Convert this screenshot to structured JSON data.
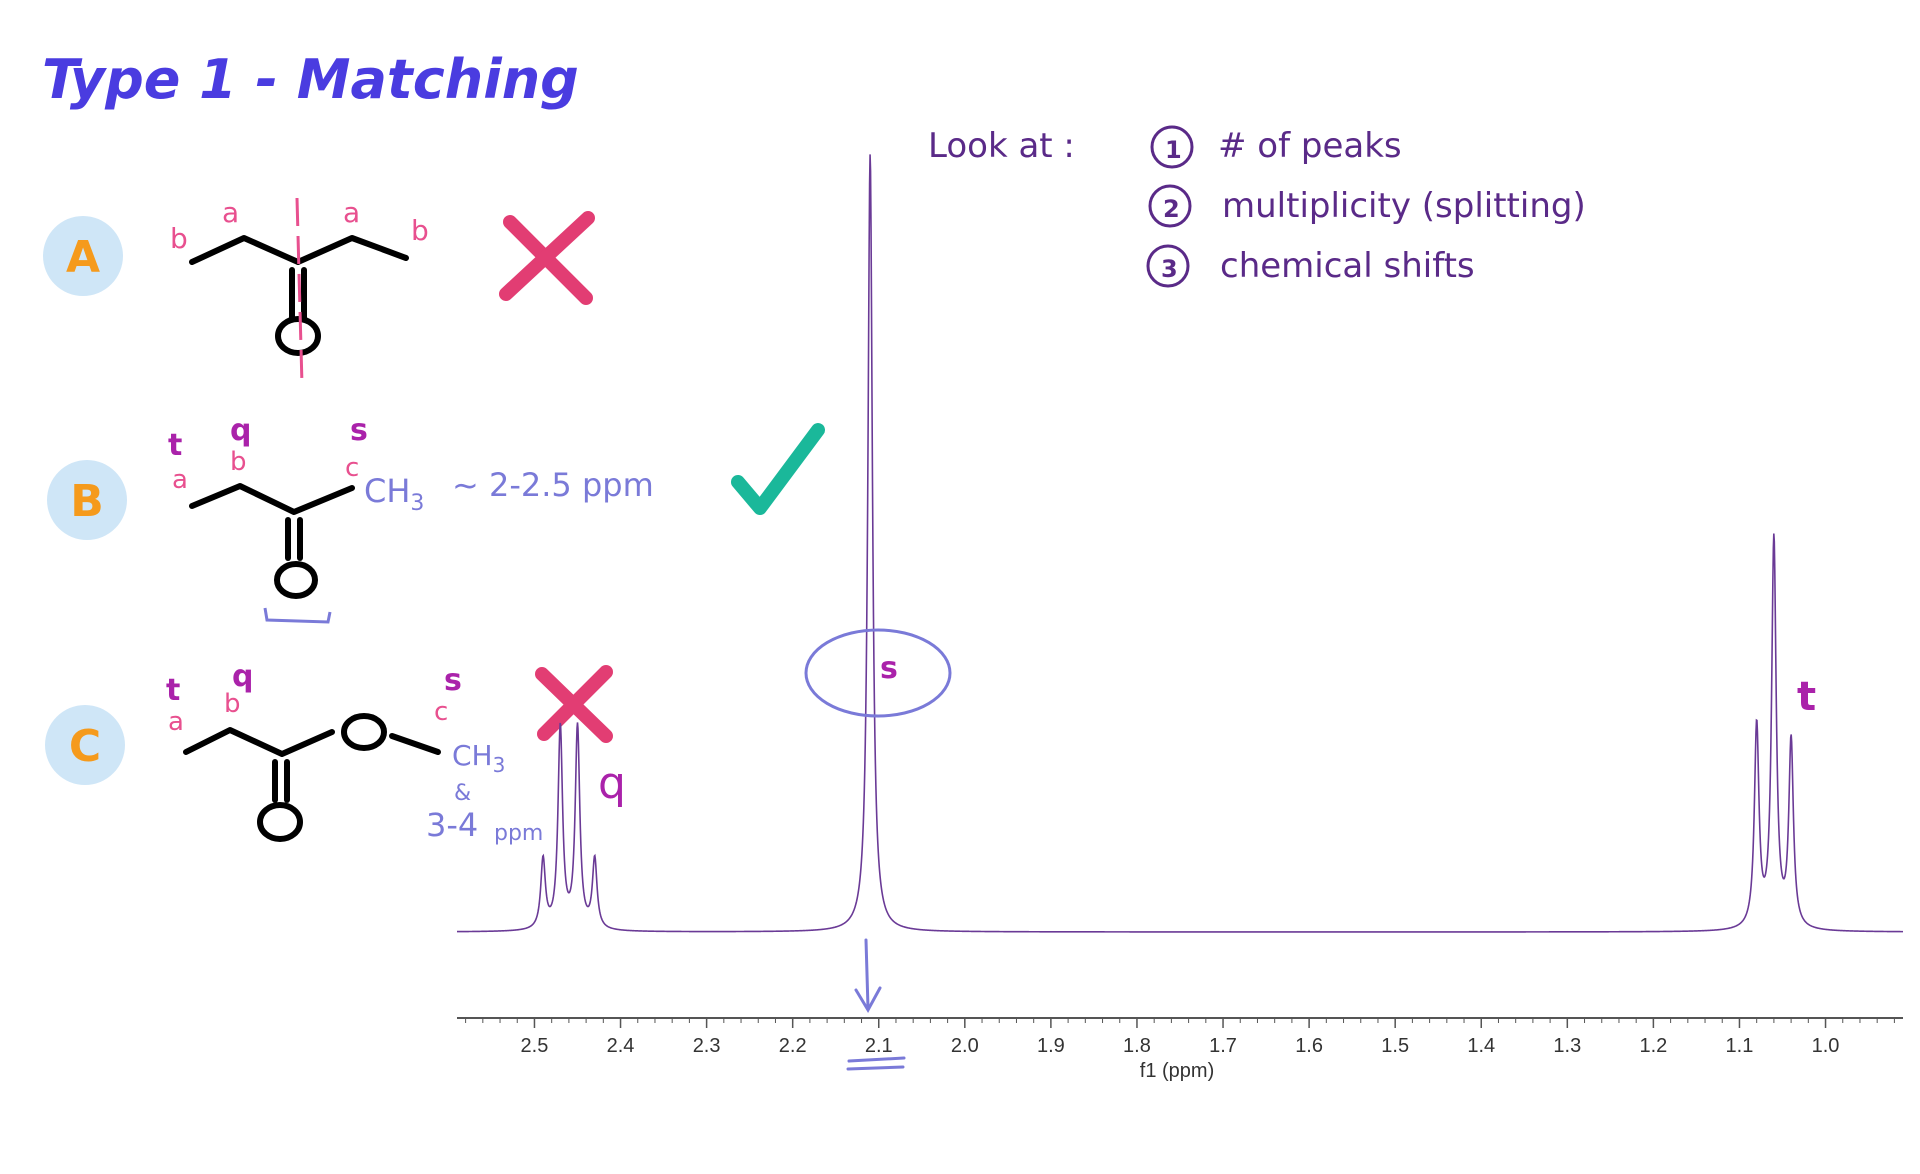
{
  "title": "Type 1 - Matching",
  "look_at": {
    "heading": "Look at :",
    "items": [
      {
        "num": "1",
        "text": "# of peaks"
      },
      {
        "num": "2",
        "text": "multiplicity (splitting)"
      },
      {
        "num": "3",
        "text": "chemical shifts"
      }
    ]
  },
  "options": [
    {
      "letter": "A",
      "verdict": "cross",
      "labels": {
        "b1": "b",
        "a1": "a",
        "a2": "a",
        "b2": "b"
      }
    },
    {
      "letter": "B",
      "verdict": "check",
      "labels": {
        "t": "t",
        "q": "q",
        "s": "s",
        "a": "a",
        "b": "b",
        "c": "c"
      },
      "note_ch": "CH",
      "note_sub": "3",
      "note_shift": "~ 2-2.5 ppm"
    },
    {
      "letter": "C",
      "verdict": "cross",
      "labels": {
        "t": "t",
        "q": "q",
        "s": "s",
        "a": "a",
        "b": "b",
        "c": "c"
      },
      "note_ch": "CH",
      "note_sub": "3",
      "note_amp": "&",
      "note_shift": "3-4",
      "note_unit": "ppm"
    }
  ],
  "annotations": {
    "singlet": "s",
    "quartet": "q",
    "triplet": "t"
  },
  "colors": {
    "title": "#4a3ce0",
    "spectrum": "#6a3a96",
    "annotation_purple": "#aa22aa",
    "label_pink": "#e8508f",
    "note_blue": "#7a7ad8",
    "circle_bg": "#cfe6f7",
    "letter_orange": "#f59a1c",
    "cross": "#e23d73",
    "check": "#1ab89a",
    "dark_purple": "#5a2a88"
  },
  "chart_data": {
    "type": "line",
    "xlabel": "f1 (ppm)",
    "xlim": [
      2.59,
      0.91
    ],
    "x_ticks": [
      2.5,
      2.4,
      2.3,
      2.2,
      2.1,
      2.0,
      1.9,
      1.8,
      1.7,
      1.6,
      1.5,
      1.4,
      1.3,
      1.2,
      1.1,
      1.0
    ],
    "x_reversed": true,
    "grid": false,
    "baseline": 0.0,
    "peaks": [
      {
        "shift": 2.49,
        "height": 0.09
      },
      {
        "shift": 2.47,
        "height": 0.26
      },
      {
        "shift": 2.45,
        "height": 0.26
      },
      {
        "shift": 2.43,
        "height": 0.09
      },
      {
        "shift": 2.11,
        "height": 1.0
      },
      {
        "shift": 1.08,
        "height": 0.26
      },
      {
        "shift": 1.06,
        "height": 0.5
      },
      {
        "shift": 1.04,
        "height": 0.24
      }
    ]
  }
}
